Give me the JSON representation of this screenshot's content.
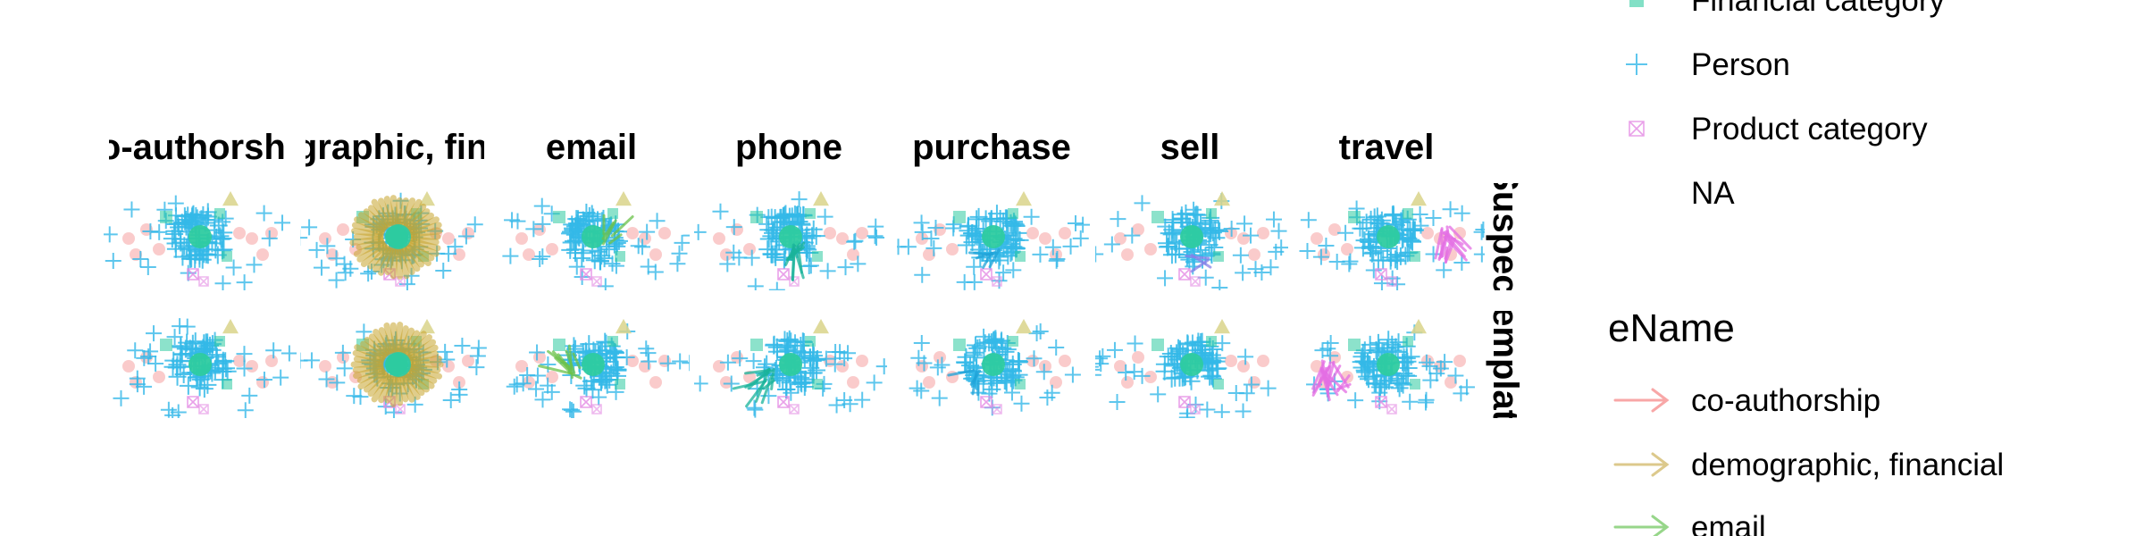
{
  "chart_data": {
    "type": "scatter",
    "subtype": "faceted network graph",
    "facet_columns": [
      "co-authorship",
      "demographic, financial",
      "email",
      "phone",
      "purchase",
      "sell",
      "travel"
    ],
    "facet_rows": [
      "Suspect",
      "Template"
    ],
    "legend_type": {
      "items": [
        {
          "label": "Financial category",
          "shape": "square",
          "color": "#2ecba0"
        },
        {
          "label": "Person",
          "shape": "plus",
          "color": "#34b8e8"
        },
        {
          "label": "Product category",
          "shape": "boxed-x",
          "color": "#e38ae3"
        },
        {
          "label": "NA",
          "shape": "none",
          "color": ""
        }
      ]
    },
    "legend_ename": {
      "title": "eName",
      "items": [
        {
          "label": "co-authorship",
          "color": "#f8a7a7"
        },
        {
          "label": "demographic, financial",
          "color": "#dcc98c"
        },
        {
          "label": "email",
          "color": "#97d68a"
        }
      ]
    },
    "edge_colors": {
      "co-authorship": "#f8a7a7",
      "demographic, financial": "#c8a52e",
      "email": "#6cc24a",
      "phone": "#19b39a",
      "purchase": "#1fa3d9",
      "sell": "#8a7fe8",
      "travel": "#e46ee4"
    },
    "node_colors": {
      "Person": "#34b8e8",
      "Financial category": "#2ecba0",
      "Product category": "#e38ae3",
      "Location": "#f5a0a0",
      "Other": "#d9d38a"
    },
    "grid": false
  }
}
